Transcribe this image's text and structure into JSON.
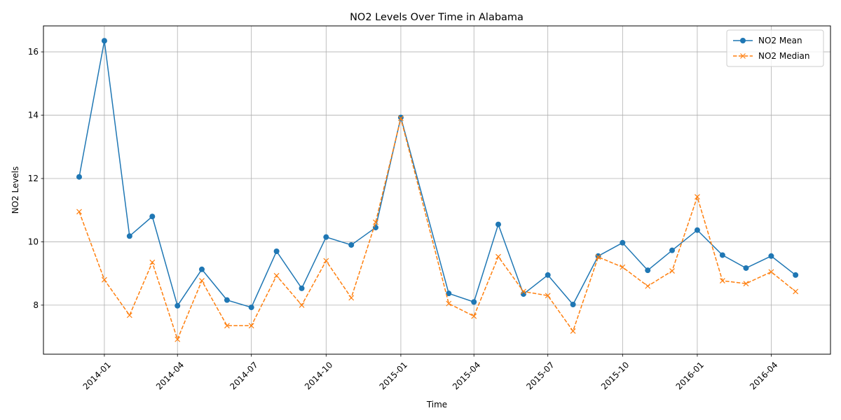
{
  "chart_data": {
    "type": "line",
    "title": "NO2 Levels Over Time in Alabama",
    "xlabel": "Time",
    "ylabel": "NO2 Levels",
    "x": [
      "2013-12",
      "2014-01",
      "2014-02",
      "2014-03",
      "2014-04",
      "2014-05",
      "2014-06",
      "2014-07",
      "2014-08",
      "2014-09",
      "2014-10",
      "2014-11",
      "2014-12",
      "2015-01",
      "2015-03",
      "2015-04",
      "2015-05",
      "2015-06",
      "2015-07",
      "2015-08",
      "2015-09",
      "2015-10",
      "2015-11",
      "2015-12",
      "2016-01",
      "2016-02",
      "2016-03",
      "2016-04",
      "2016-05"
    ],
    "x_ticks": [
      "2014-01",
      "2014-04",
      "2014-07",
      "2014-10",
      "2015-01",
      "2015-04",
      "2015-07",
      "2015-10",
      "2016-01",
      "2016-04"
    ],
    "y_ticks": [
      8,
      10,
      12,
      14,
      16
    ],
    "xlim": [
      "2013-10-18",
      "2016-06-13"
    ],
    "ylim": [
      6.45,
      16.82
    ],
    "grid": true,
    "legend_position": "top-right",
    "series": [
      {
        "name": "NO2 Mean",
        "color": "#1f77b4",
        "line_style": "solid",
        "marker": "circle",
        "values": [
          12.05,
          16.35,
          10.18,
          10.8,
          7.98,
          9.13,
          8.16,
          7.93,
          9.7,
          8.53,
          10.15,
          9.9,
          10.45,
          13.93,
          8.37,
          8.1,
          10.55,
          8.35,
          8.95,
          8.02,
          9.55,
          9.97,
          9.1,
          9.73,
          10.37,
          9.58,
          9.17,
          9.55,
          8.95
        ]
      },
      {
        "name": "NO2 Median",
        "color": "#ff7f0e",
        "line_style": "dashed",
        "marker": "x",
        "values": [
          10.95,
          8.8,
          7.68,
          9.35,
          6.92,
          8.77,
          7.35,
          7.35,
          8.93,
          8.0,
          9.4,
          8.23,
          10.62,
          13.9,
          8.05,
          7.65,
          9.53,
          8.43,
          8.3,
          7.18,
          9.52,
          9.2,
          8.6,
          9.08,
          11.42,
          8.77,
          8.68,
          9.05,
          8.43
        ]
      }
    ]
  }
}
